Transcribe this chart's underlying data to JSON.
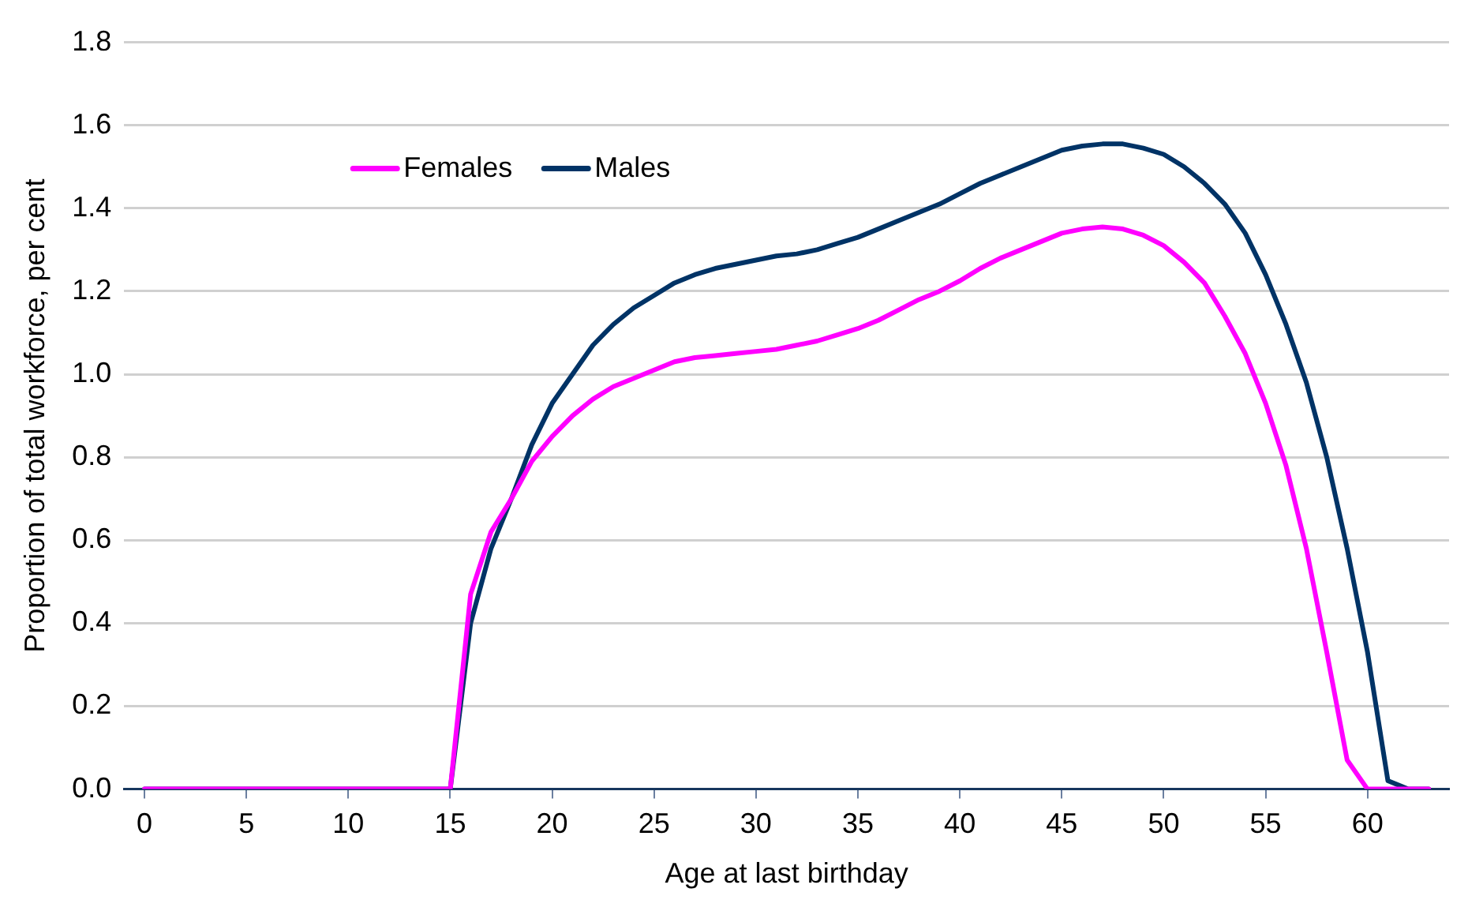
{
  "chart_data": {
    "type": "line",
    "xlabel": "Age at last birthday",
    "ylabel": "Proportion of total workforce, per cent",
    "x": [
      0,
      1,
      2,
      3,
      4,
      5,
      6,
      7,
      8,
      9,
      10,
      11,
      12,
      13,
      14,
      15,
      16,
      17,
      18,
      19,
      20,
      21,
      22,
      23,
      24,
      25,
      26,
      27,
      28,
      29,
      30,
      31,
      32,
      33,
      34,
      35,
      36,
      37,
      38,
      39,
      40,
      41,
      42,
      43,
      44,
      45,
      46,
      47,
      48,
      49,
      50,
      51,
      52,
      53,
      54,
      55,
      56,
      57,
      58,
      59,
      60,
      61,
      62,
      63
    ],
    "series": [
      {
        "name": "Females",
        "color": "#ff00ff",
        "values": [
          0,
          0,
          0,
          0,
          0,
          0,
          0,
          0,
          0,
          0,
          0,
          0,
          0,
          0,
          0,
          0,
          0.47,
          0.62,
          0.7,
          0.79,
          0.85,
          0.9,
          0.94,
          0.97,
          0.99,
          1.01,
          1.03,
          1.04,
          1.045,
          1.05,
          1.055,
          1.06,
          1.07,
          1.08,
          1.095,
          1.11,
          1.13,
          1.155,
          1.18,
          1.2,
          1.225,
          1.255,
          1.28,
          1.3,
          1.32,
          1.34,
          1.35,
          1.355,
          1.35,
          1.335,
          1.31,
          1.27,
          1.22,
          1.14,
          1.05,
          0.93,
          0.78,
          0.58,
          0.33,
          0.07,
          0,
          0,
          0,
          0
        ]
      },
      {
        "name": "Males",
        "color": "#003366",
        "values": [
          0,
          0,
          0,
          0,
          0,
          0,
          0,
          0,
          0,
          0,
          0,
          0,
          0,
          0,
          0,
          0,
          0.4,
          0.58,
          0.7,
          0.83,
          0.93,
          1.0,
          1.07,
          1.12,
          1.16,
          1.19,
          1.22,
          1.24,
          1.255,
          1.265,
          1.275,
          1.285,
          1.29,
          1.3,
          1.315,
          1.33,
          1.35,
          1.37,
          1.39,
          1.41,
          1.435,
          1.46,
          1.48,
          1.5,
          1.52,
          1.54,
          1.55,
          1.555,
          1.555,
          1.545,
          1.53,
          1.5,
          1.46,
          1.41,
          1.34,
          1.24,
          1.12,
          0.98,
          0.8,
          0.58,
          0.33,
          0.02,
          0,
          0
        ]
      }
    ],
    "xlim": [
      -1,
      64
    ],
    "xticks": [
      0,
      5,
      10,
      15,
      20,
      25,
      30,
      35,
      40,
      45,
      50,
      55,
      60
    ],
    "ylim": [
      0,
      1.8
    ],
    "yticks": [
      {
        "value": 0,
        "label": "0.0"
      },
      0.2,
      0.4,
      0.6,
      0.8,
      {
        "value": 1,
        "label": "1.0"
      },
      1.2,
      1.4,
      1.6,
      1.8
    ],
    "grid": "y",
    "legend": "top left",
    "marker": "none",
    "line_style": "solid"
  }
}
